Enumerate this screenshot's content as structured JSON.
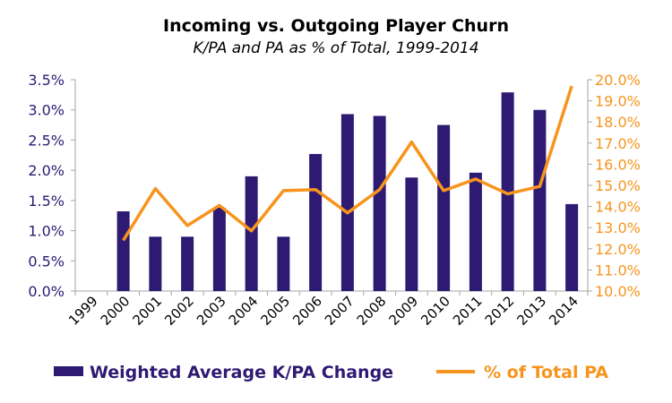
{
  "chart_data": {
    "type": "bar",
    "title": "Incoming vs. Outgoing Player Churn",
    "subtitle": "K/PA and PA as % of Total, 1999-2014",
    "categories": [
      "1999",
      "2000",
      "2001",
      "2002",
      "2003",
      "2004",
      "2005",
      "2006",
      "2007",
      "2008",
      "2009",
      "2010",
      "2011",
      "2012",
      "2013",
      "2014"
    ],
    "series": [
      {
        "name": "Weighted Average K/PA Change",
        "type": "bar",
        "axis": "left",
        "values": [
          0.0,
          1.32,
          0.9,
          0.9,
          1.38,
          1.9,
          0.9,
          2.27,
          2.93,
          2.9,
          1.88,
          2.75,
          1.96,
          3.29,
          3.0,
          1.44
        ]
      },
      {
        "name": "% of Total PA",
        "type": "line",
        "axis": "right",
        "values": [
          null,
          12.4,
          14.85,
          13.1,
          14.05,
          12.85,
          14.75,
          14.8,
          13.7,
          14.8,
          17.05,
          14.75,
          15.3,
          14.6,
          14.95,
          19.7
        ]
      }
    ],
    "y_left": {
      "min": 0,
      "max": 3.5,
      "step": 0.5,
      "tick_labels": [
        "0.0%",
        "0.5%",
        "1.0%",
        "1.5%",
        "2.0%",
        "2.5%",
        "3.0%",
        "3.5%"
      ]
    },
    "y_right": {
      "min": 10,
      "max": 20,
      "step": 1,
      "tick_labels": [
        "10.0%",
        "11.0%",
        "12.0%",
        "13.0%",
        "14.0%",
        "15.0%",
        "16.0%",
        "17.0%",
        "18.0%",
        "19.0%",
        "20.0%"
      ]
    },
    "grid": false,
    "legend_position": "bottom",
    "colors": {
      "bar": "#2e1a73",
      "line": "#f7941d",
      "left_axis_text": "#2e1a73",
      "right_axis_text": "#f7941d",
      "axis_line": "#a6a6a6"
    }
  }
}
